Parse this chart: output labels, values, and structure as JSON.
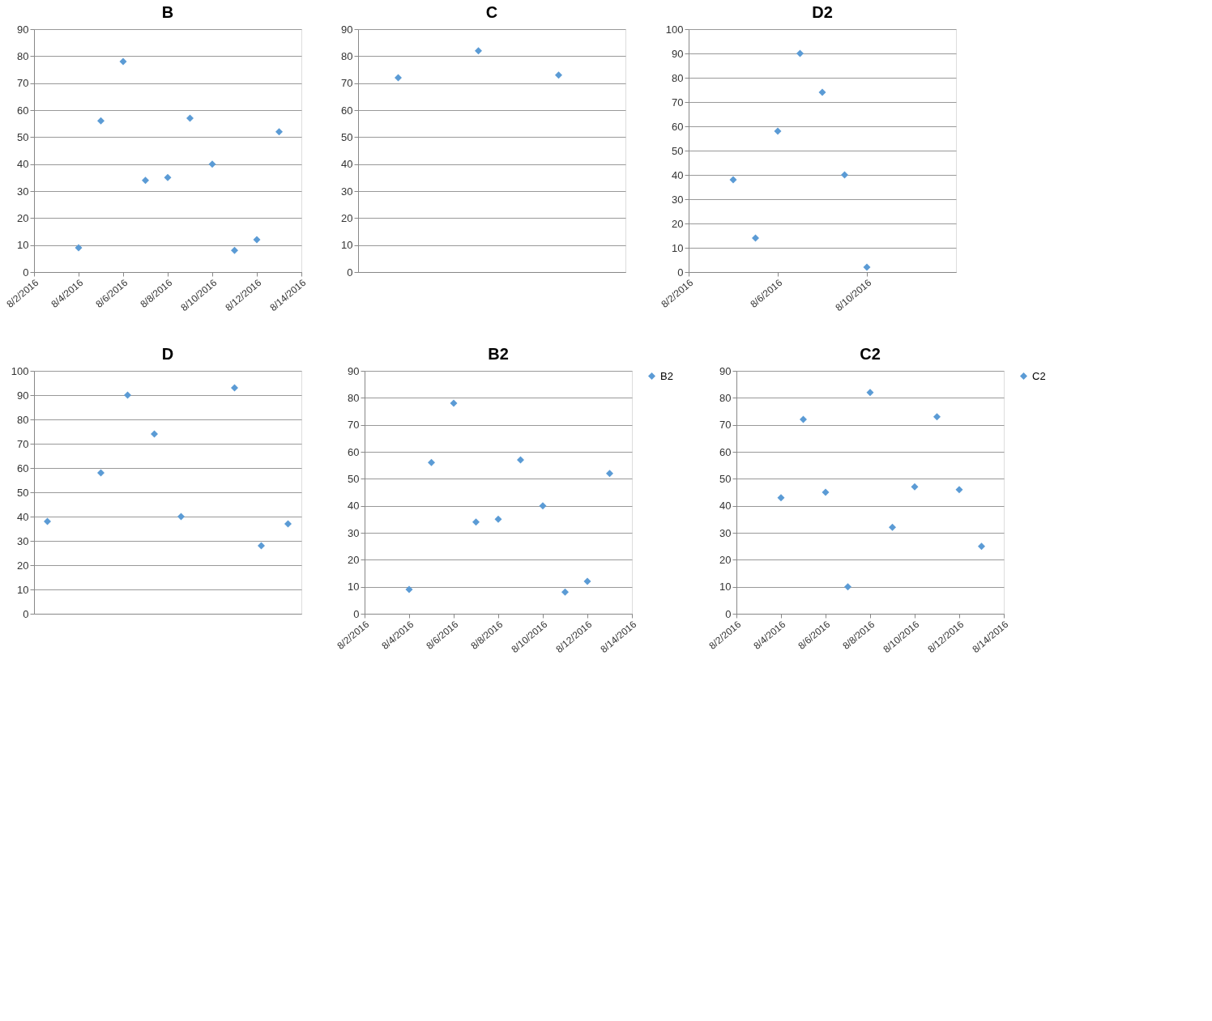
{
  "chart_data": [
    {
      "type": "scatter",
      "title": "B",
      "x": [
        "2016-08-04",
        "2016-08-05",
        "2016-08-06",
        "2016-08-07",
        "2016-08-08",
        "2016-08-09",
        "2016-08-10",
        "2016-08-11",
        "2016-08-12",
        "2016-08-13"
      ],
      "series": [
        {
          "color": "#5b9bd5",
          "values": [
            9,
            56,
            78,
            34,
            35,
            57,
            40,
            8,
            12,
            52
          ]
        }
      ],
      "marker": "diamond",
      "grid": "y",
      "xlim": [
        "2016-08-02",
        "2016-08-14"
      ],
      "xticks": [
        {
          "value": "2016-08-02",
          "label": "8/2/2016"
        },
        {
          "value": "2016-08-04",
          "label": "8/4/2016"
        },
        {
          "value": "2016-08-06",
          "label": "8/6/2016"
        },
        {
          "value": "2016-08-08",
          "label": "8/8/2016"
        },
        {
          "value": "2016-08-10",
          "label": "8/10/2016"
        },
        {
          "value": "2016-08-12",
          "label": "8/12/2016"
        },
        {
          "value": "2016-08-14",
          "label": "8/14/2016"
        }
      ],
      "ylim": [
        0,
        90
      ],
      "yticks": [
        0,
        10,
        20,
        30,
        40,
        50,
        60,
        70,
        80,
        90
      ]
    },
    {
      "type": "scatter",
      "title": "C",
      "categories": [
        null,
        null,
        null,
        null,
        null,
        null,
        null,
        null,
        null,
        null
      ],
      "series": [
        {
          "color": "#5b9bd5",
          "values": [
            null,
            72,
            null,
            null,
            82,
            null,
            null,
            73,
            null,
            null
          ]
        }
      ],
      "marker": "diamond",
      "grid": "y",
      "tick_labels": "y",
      "ylim": [
        0,
        90
      ],
      "yticks": [
        0,
        10,
        20,
        30,
        40,
        50,
        60,
        70,
        80,
        90
      ]
    },
    {
      "type": "scatter",
      "title": "D2",
      "x": [
        "2016-08-04",
        "2016-08-05",
        "2016-08-06",
        "2016-08-07",
        "2016-08-08",
        "2016-08-09",
        "2016-08-10"
      ],
      "series": [
        {
          "color": "#5b9bd5",
          "values": [
            38,
            14,
            58,
            90,
            74,
            40,
            2
          ]
        }
      ],
      "marker": "diamond",
      "grid": "y",
      "xlim": [
        "2016-08-02",
        "2016-08-14"
      ],
      "xticks": [
        {
          "value": "2016-08-02",
          "label": "8/2/2016"
        },
        {
          "value": "2016-08-06",
          "label": "8/6/2016"
        },
        {
          "value": "2016-08-10",
          "label": "8/10/2016"
        }
      ],
      "ylim": [
        0,
        100
      ],
      "yticks": [
        0,
        10,
        20,
        30,
        40,
        50,
        60,
        70,
        80,
        90,
        100
      ]
    },
    {
      "type": "scatter",
      "title": "D",
      "categories": [
        null,
        null,
        null,
        null,
        null,
        null,
        null,
        null,
        null,
        null
      ],
      "series": [
        {
          "color": "#5b9bd5",
          "values": [
            38,
            null,
            58,
            90,
            74,
            40,
            null,
            93,
            28,
            37
          ]
        }
      ],
      "marker": "diamond",
      "grid": "y",
      "tick_labels": "y",
      "ylim": [
        0,
        100
      ],
      "yticks": [
        0,
        10,
        20,
        30,
        40,
        50,
        60,
        70,
        80,
        90,
        100
      ]
    },
    {
      "type": "scatter",
      "title": "B2",
      "x": [
        "2016-08-04",
        "2016-08-05",
        "2016-08-06",
        "2016-08-07",
        "2016-08-08",
        "2016-08-09",
        "2016-08-10",
        "2016-08-11",
        "2016-08-12",
        "2016-08-13"
      ],
      "series": [
        {
          "name": "B2",
          "color": "#5b9bd5",
          "values": [
            9,
            56,
            78,
            34,
            35,
            57,
            40,
            8,
            12,
            52
          ]
        }
      ],
      "marker": "diamond",
      "grid": "y",
      "legend": "right",
      "xlim": [
        "2016-08-02",
        "2016-08-14"
      ],
      "xticks": [
        {
          "value": "2016-08-02",
          "label": "8/2/2016"
        },
        {
          "value": "2016-08-04",
          "label": "8/4/2016"
        },
        {
          "value": "2016-08-06",
          "label": "8/6/2016"
        },
        {
          "value": "2016-08-08",
          "label": "8/8/2016"
        },
        {
          "value": "2016-08-10",
          "label": "8/10/2016"
        },
        {
          "value": "2016-08-12",
          "label": "8/12/2016"
        },
        {
          "value": "2016-08-14",
          "label": "8/14/2016"
        }
      ],
      "ylim": [
        0,
        90
      ],
      "yticks": [
        0,
        10,
        20,
        30,
        40,
        50,
        60,
        70,
        80,
        90
      ]
    },
    {
      "type": "scatter",
      "title": "C2",
      "x": [
        "2016-08-04",
        "2016-08-05",
        "2016-08-06",
        "2016-08-07",
        "2016-08-08",
        "2016-08-09",
        "2016-08-10",
        "2016-08-11",
        "2016-08-12",
        "2016-08-13"
      ],
      "series": [
        {
          "name": "C2",
          "color": "#5b9bd5",
          "values": [
            43,
            72,
            45,
            10,
            82,
            32,
            47,
            73,
            46,
            25
          ]
        }
      ],
      "marker": "diamond",
      "grid": "y",
      "legend": "right",
      "xlim": [
        "2016-08-02",
        "2016-08-14"
      ],
      "xticks": [
        {
          "value": "2016-08-02",
          "label": "8/2/2016"
        },
        {
          "value": "2016-08-04",
          "label": "8/4/2016"
        },
        {
          "value": "2016-08-06",
          "label": "8/6/2016"
        },
        {
          "value": "2016-08-08",
          "label": "8/8/2016"
        },
        {
          "value": "2016-08-10",
          "label": "8/10/2016"
        },
        {
          "value": "2016-08-12",
          "label": "8/12/2016"
        },
        {
          "value": "2016-08-14",
          "label": "8/14/2016"
        }
      ],
      "ylim": [
        0,
        90
      ],
      "yticks": [
        0,
        10,
        20,
        30,
        40,
        50,
        60,
        70,
        80,
        90
      ]
    }
  ]
}
